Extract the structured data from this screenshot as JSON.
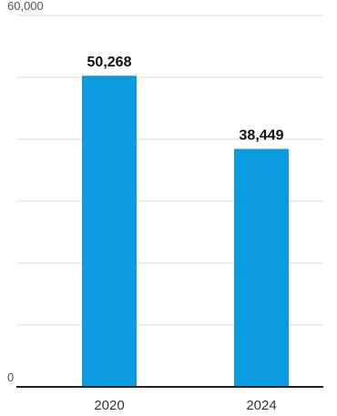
{
  "chart_data": {
    "type": "bar",
    "categories": [
      "2020",
      "2024"
    ],
    "values": [
      50268,
      38449
    ],
    "value_labels": [
      "50,268",
      "38,449"
    ],
    "y_ticks": [
      {
        "value": 60000,
        "label": "60,000"
      },
      {
        "value": 0,
        "label": "0"
      }
    ],
    "ylim": [
      0,
      60000
    ],
    "gridlines": [
      10000,
      20000,
      30000,
      40000,
      50000,
      60000
    ],
    "grid": true,
    "legend": "none",
    "colors": {
      "bar": "#0a9be0",
      "grid": "#d9d9d9",
      "axis": "#222222",
      "tick_text": "#555555",
      "value_text": "#111111"
    }
  }
}
